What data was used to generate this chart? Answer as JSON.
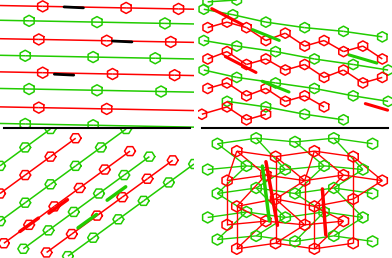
{
  "background_color": "#ffffff",
  "red": "#ff0000",
  "green": "#22cc00",
  "black": "#000000",
  "lw": 1.1,
  "figsize": [
    3.92,
    2.58
  ],
  "dpi": 100
}
